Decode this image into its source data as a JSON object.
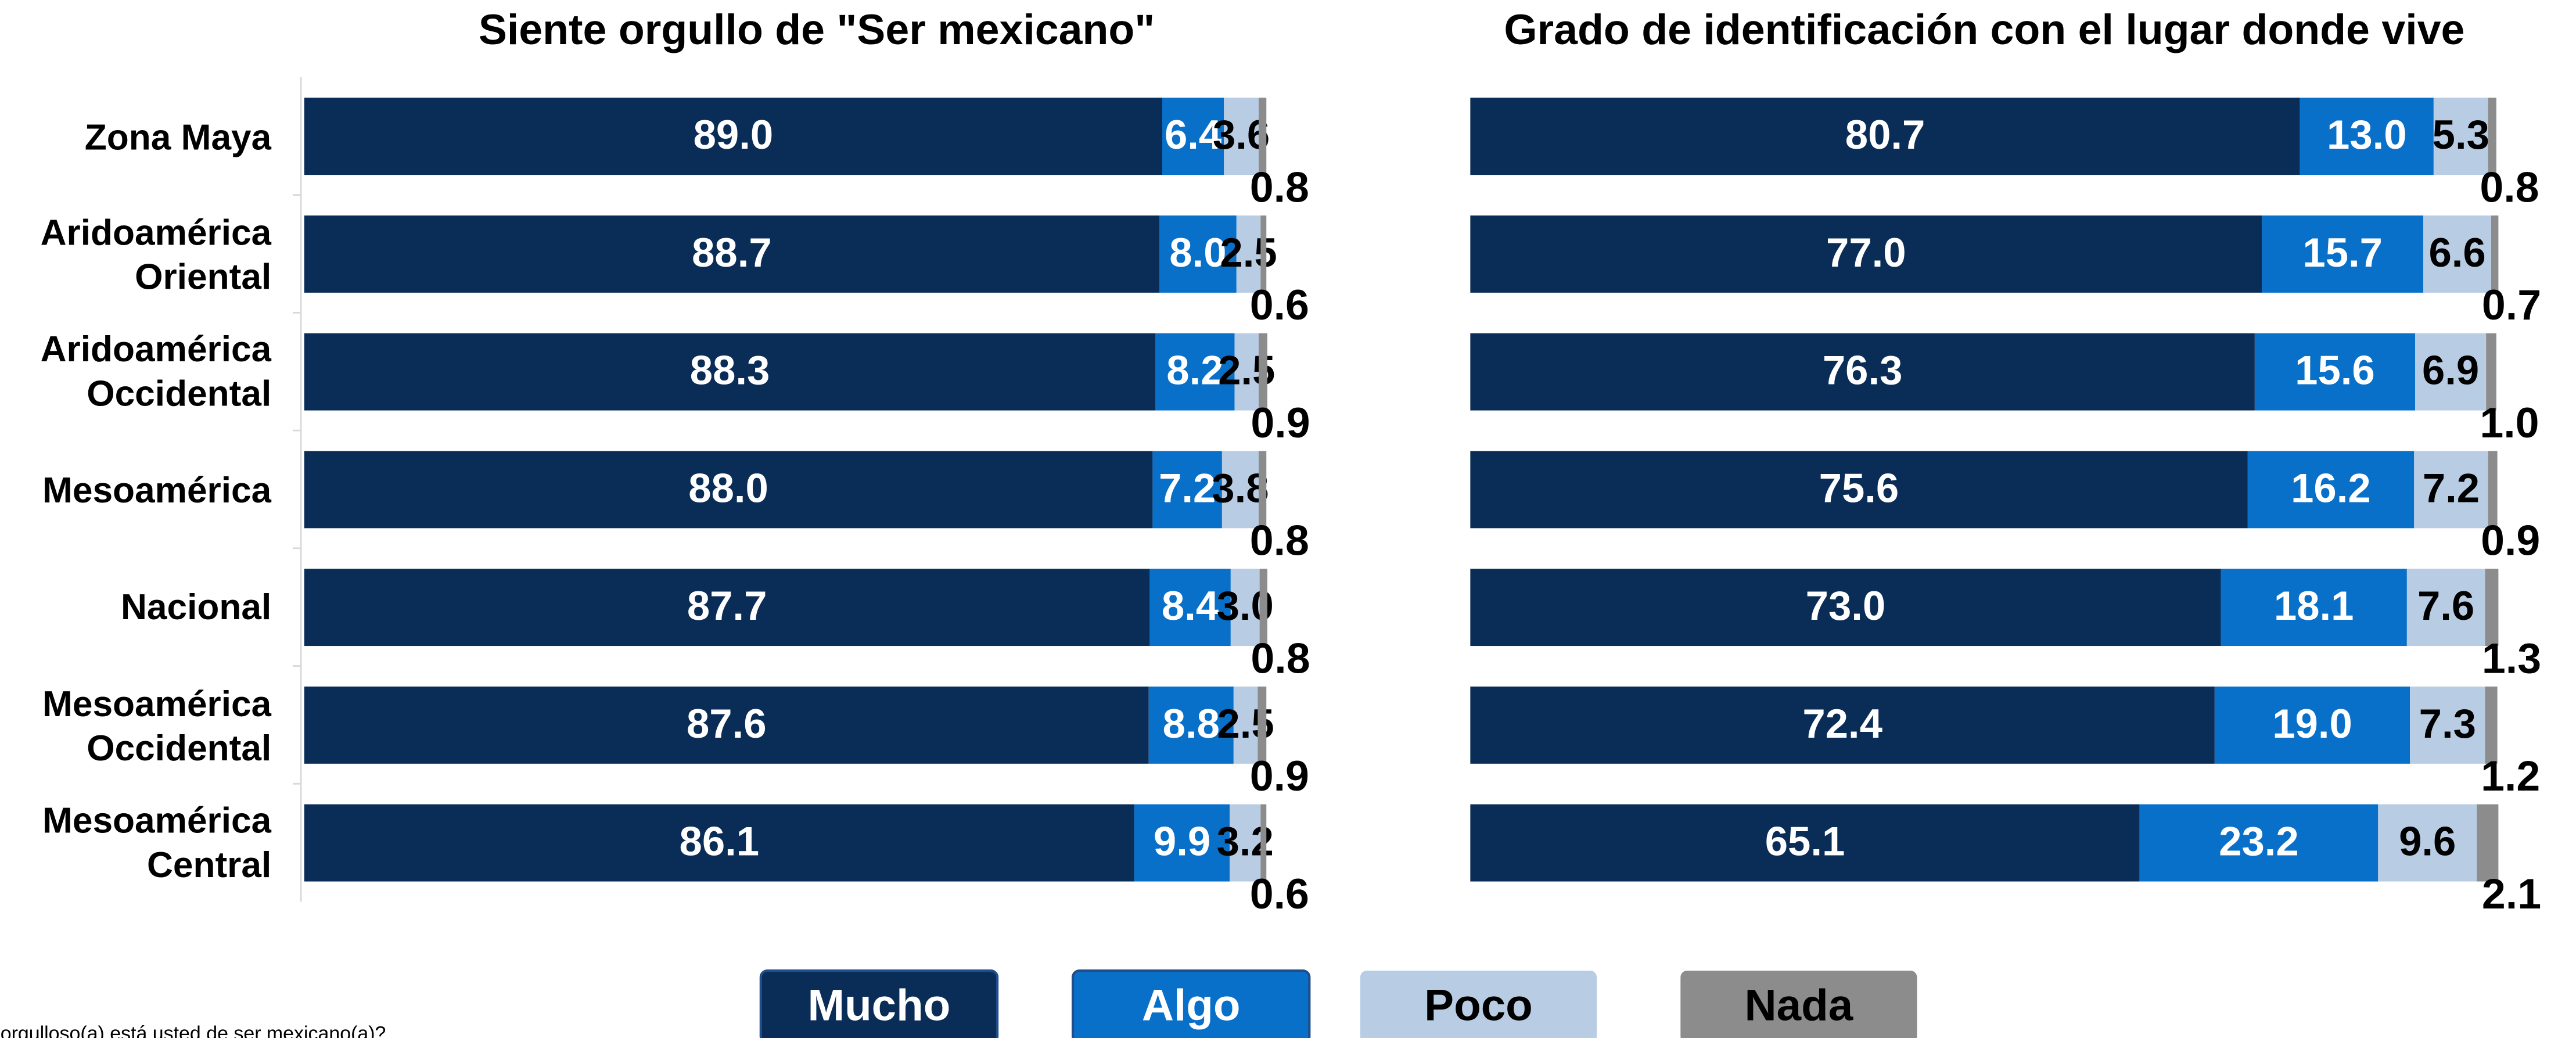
{
  "chart_data": [
    {
      "type": "stacked-barh",
      "title": "Siente orgullo de \"Ser mexicano\"",
      "categories": [
        "Zona Maya",
        "Aridoamérica\nOriental",
        "Aridoamérica\nOccidental",
        "Mesoamérica",
        "Nacional",
        "Mesoamérica\nOccidental",
        "Mesoamérica\nCentral"
      ],
      "xlim": [
        0,
        100
      ],
      "series": [
        {
          "name": "Mucho",
          "color": "#0a2d57",
          "values": [
            89.0,
            88.7,
            88.3,
            88.0,
            87.7,
            87.6,
            86.1
          ],
          "value_labels": [
            "89.0",
            "88.7",
            "88.3",
            "88.0",
            "87.7",
            "87.6",
            "86.1"
          ]
        },
        {
          "name": "Algo",
          "color": "#0870c9",
          "values": [
            6.4,
            8.0,
            8.2,
            7.2,
            8.4,
            8.8,
            9.9
          ],
          "value_labels": [
            "6.4",
            "8.0",
            "8.2",
            "7.2",
            "8.4",
            "8.8",
            "9.9"
          ]
        },
        {
          "name": "Poco",
          "color": "#b8cce4",
          "values": [
            3.6,
            2.5,
            2.5,
            3.8,
            3.0,
            2.5,
            3.2
          ],
          "value_labels": [
            "3.6",
            "2.5",
            "2.5",
            "3.8",
            "3.0",
            "2.5",
            "3.2"
          ]
        },
        {
          "name": "Nada",
          "color": "#8c8c8c",
          "values": [
            0.8,
            0.6,
            0.9,
            0.8,
            0.8,
            0.9,
            0.6
          ],
          "value_labels": [
            "0.8",
            "0.6",
            "0.9",
            "0.8",
            "0.8",
            "0.9",
            "0.6"
          ]
        }
      ]
    },
    {
      "type": "stacked-barh",
      "title": "Grado de identificación con el lugar donde vive",
      "xlim": [
        0,
        100
      ],
      "series": [
        {
          "color": "#0a2d57",
          "values": [
            80.7,
            77.0,
            76.3,
            75.6,
            73.0,
            72.4,
            65.1
          ],
          "value_labels": [
            "80.7",
            "77.0",
            "76.3",
            "75.6",
            "73.0",
            "72.4",
            "65.1"
          ]
        },
        {
          "color": "#0870c9",
          "values": [
            13.0,
            15.7,
            15.6,
            16.2,
            18.1,
            19.0,
            23.2
          ],
          "value_labels": [
            "13.0",
            "15.7",
            "15.6",
            "16.2",
            "18.1",
            "19.0",
            "23.2"
          ]
        },
        {
          "color": "#b8cce4",
          "values": [
            5.3,
            6.6,
            6.9,
            7.2,
            7.6,
            7.3,
            9.6
          ],
          "value_labels": [
            "5.3",
            "6.6",
            "6.9",
            "7.2",
            "7.6",
            "7.3",
            "9.6"
          ]
        },
        {
          "color": "#8c8c8c",
          "values": [
            0.8,
            0.7,
            1.0,
            0.9,
            1.3,
            1.2,
            2.1
          ],
          "value_labels": [
            "0.8",
            "0.7",
            "1.0",
            "0.9",
            "1.3",
            "1.2",
            "2.1"
          ]
        }
      ]
    }
  ],
  "note": "orgulloso(a) está usted de ser mexicano(a)?"
}
